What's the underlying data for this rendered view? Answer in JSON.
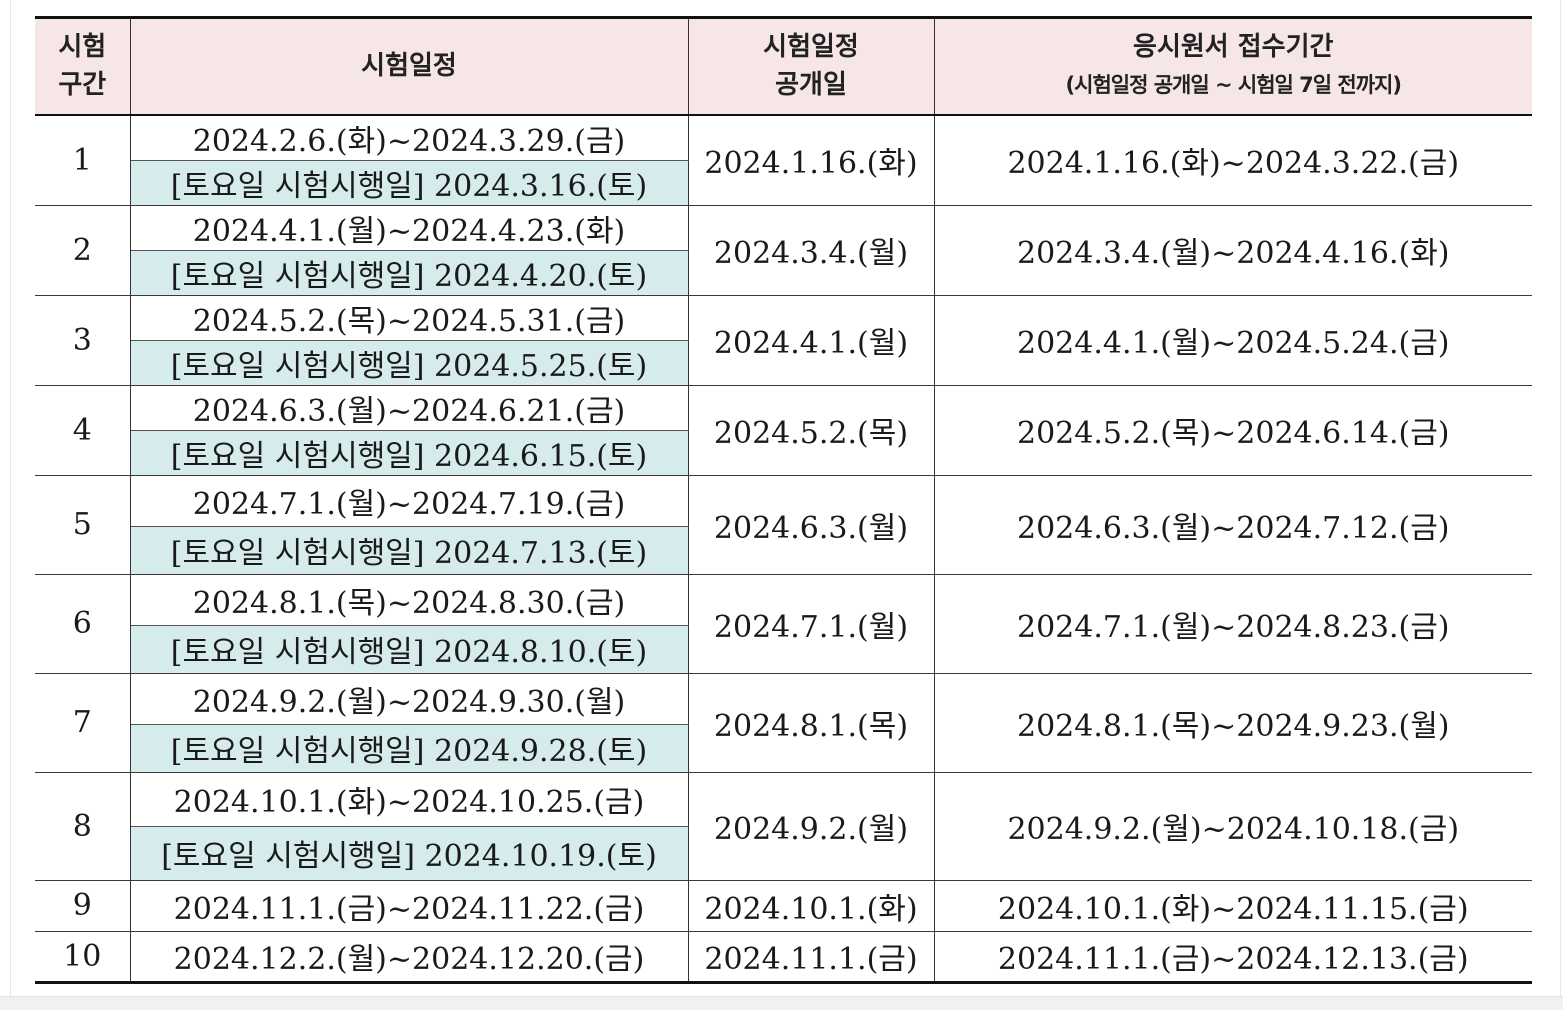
{
  "header": {
    "col_period_line1": "시험",
    "col_period_line2": "구간",
    "col_schedule": "시험일정",
    "col_release_line1": "시험일정",
    "col_release_line2": "공개일",
    "col_apply_line1": "응시원서 접수기간",
    "col_apply_line2": "(시험일정 공개일 ~ 시험일 7일 전까지)"
  },
  "rows": [
    {
      "period": "1",
      "schedule": "2024.2.6.(화)~2024.3.29.(금)",
      "saturday": "[토요일 시험시행일] 2024.3.16.(토)",
      "release": "2024.1.16.(화)",
      "apply": "2024.1.16.(화)~2024.3.22.(금)"
    },
    {
      "period": "2",
      "schedule": "2024.4.1.(월)~2024.4.23.(화)",
      "saturday": "[토요일 시험시행일] 2024.4.20.(토)",
      "release": "2024.3.4.(월)",
      "apply": "2024.3.4.(월)~2024.4.16.(화)"
    },
    {
      "period": "3",
      "schedule": "2024.5.2.(목)~2024.5.31.(금)",
      "saturday": "[토요일 시험시행일] 2024.5.25.(토)",
      "release": "2024.4.1.(월)",
      "apply": "2024.4.1.(월)~2024.5.24.(금)"
    },
    {
      "period": "4",
      "schedule": "2024.6.3.(월)~2024.6.21.(금)",
      "saturday": "[토요일 시험시행일] 2024.6.15.(토)",
      "release": "2024.5.2.(목)",
      "apply": "2024.5.2.(목)~2024.6.14.(금)"
    },
    {
      "period": "5",
      "schedule": "2024.7.1.(월)~2024.7.19.(금)",
      "saturday": "[토요일 시험시행일] 2024.7.13.(토)",
      "release": "2024.6.3.(월)",
      "apply": "2024.6.3.(월)~2024.7.12.(금)"
    },
    {
      "period": "6",
      "schedule": "2024.8.1.(목)~2024.8.30.(금)",
      "saturday": "[토요일 시험시행일] 2024.8.10.(토)",
      "release": "2024.7.1.(월)",
      "apply": "2024.7.1.(월)~2024.8.23.(금)"
    },
    {
      "period": "7",
      "schedule": "2024.9.2.(월)~2024.9.30.(월)",
      "saturday": "[토요일 시험시행일] 2024.9.28.(토)",
      "release": "2024.8.1.(목)",
      "apply": "2024.8.1.(목)~2024.9.23.(월)"
    },
    {
      "period": "8",
      "schedule": "2024.10.1.(화)~2024.10.25.(금)",
      "saturday": "[토요일 시험시행일] 2024.10.19.(토)",
      "release": "2024.9.2.(월)",
      "apply": "2024.9.2.(월)~2024.10.18.(금)"
    },
    {
      "period": "9",
      "schedule": "2024.11.1.(금)~2024.11.22.(금)",
      "release": "2024.10.1.(화)",
      "apply": "2024.10.1.(화)~2024.11.15.(금)"
    },
    {
      "period": "10",
      "schedule": "2024.12.2.(월)~2024.12.20.(금)",
      "release": "2024.11.1.(금)",
      "apply": "2024.11.1.(금)~2024.12.13.(금)"
    }
  ]
}
